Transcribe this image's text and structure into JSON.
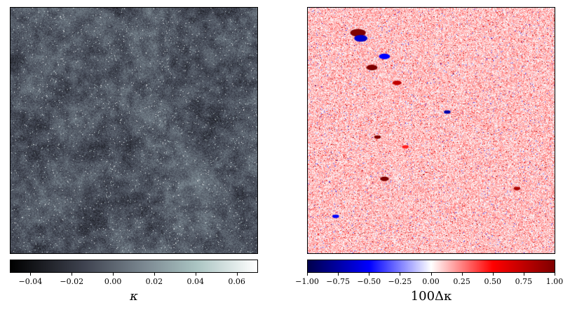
{
  "chart_data": [
    {
      "type": "heatmap",
      "colormap": "bone",
      "colors": [
        "#000000",
        "#3f4350",
        "#7d8a93",
        "#a9c3c1",
        "#ffffff"
      ],
      "colorbar": {
        "label": "κ",
        "range": [
          -0.05,
          0.07
        ],
        "ticks": [
          -0.04,
          -0.02,
          0.0,
          0.02,
          0.04,
          0.06
        ],
        "tick_labels": [
          "−0.04",
          "−0.02",
          "0.00",
          "0.02",
          "0.04",
          "0.06"
        ]
      }
    },
    {
      "type": "heatmap",
      "colormap": "seismic",
      "colors": [
        "#00004c",
        "#0000ff",
        "#ffffff",
        "#ff0000",
        "#7f0000"
      ],
      "colorbar": {
        "label": "100Δκ",
        "range": [
          -1.0,
          1.0
        ],
        "ticks": [
          -1.0,
          -0.75,
          -0.5,
          -0.25,
          0.0,
          0.25,
          0.5,
          0.75,
          1.0
        ],
        "tick_labels": [
          "−1.00",
          "−0.75",
          "−0.50",
          "−0.25",
          "0.00",
          "0.25",
          "0.50",
          "0.75",
          "1.00"
        ]
      }
    }
  ]
}
